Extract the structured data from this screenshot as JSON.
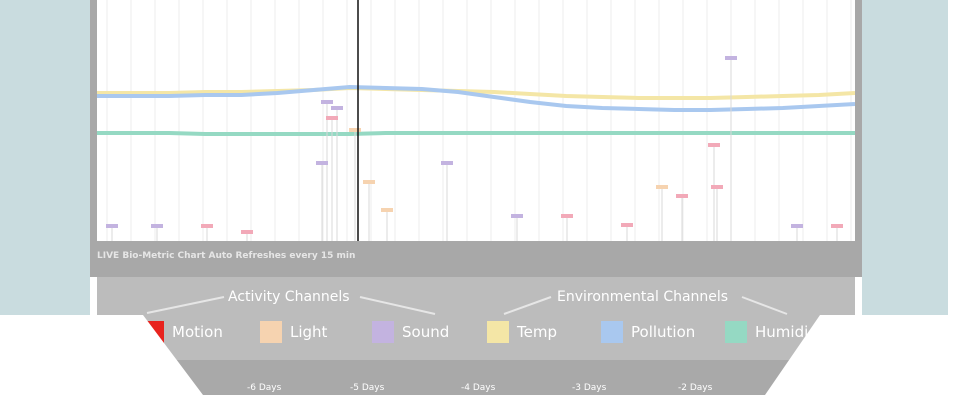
{
  "caption": "LIVE Bio-Metric Chart Auto Refreshes every 15 min",
  "legend": {
    "groups": [
      "Activity Channels",
      "Environmental  Channels"
    ],
    "items": [
      {
        "label": "Motion",
        "color": "#e8231e"
      },
      {
        "label": "Light",
        "color": "#f6d3b0"
      },
      {
        "label": "Sound",
        "color": "#c3b3e0"
      },
      {
        "label": "Temp",
        "color": "#f4e6a6"
      },
      {
        "label": "Pollution",
        "color": "#a9c8ef"
      },
      {
        "label": "Humidi",
        "color": "#95d9c3"
      }
    ]
  },
  "chart_data": {
    "type": "line",
    "x_ticks": [
      "-6 Days",
      "-5 Days",
      "-4 Days",
      "-3 Days",
      "-2 Days"
    ],
    "grid": true,
    "series": [
      {
        "name": "Temp",
        "values": [
          93,
          93,
          93,
          92,
          92,
          91,
          90,
          88,
          89,
          90,
          91,
          92,
          94,
          96,
          97,
          98,
          98,
          98,
          97,
          96,
          95,
          93
        ]
      },
      {
        "name": "Pollution",
        "values": [
          96,
          96,
          96,
          95,
          95,
          93,
          90,
          87,
          88,
          89,
          92,
          97,
          102,
          106,
          108,
          109,
          110,
          110,
          109,
          108,
          106,
          104
        ]
      },
      {
        "name": "Humidity",
        "values": [
          133,
          133,
          133,
          134,
          134,
          134,
          134,
          134,
          133,
          133,
          133,
          133,
          133,
          133,
          133,
          133,
          133,
          133,
          133,
          133,
          133,
          133
        ]
      }
    ]
  }
}
